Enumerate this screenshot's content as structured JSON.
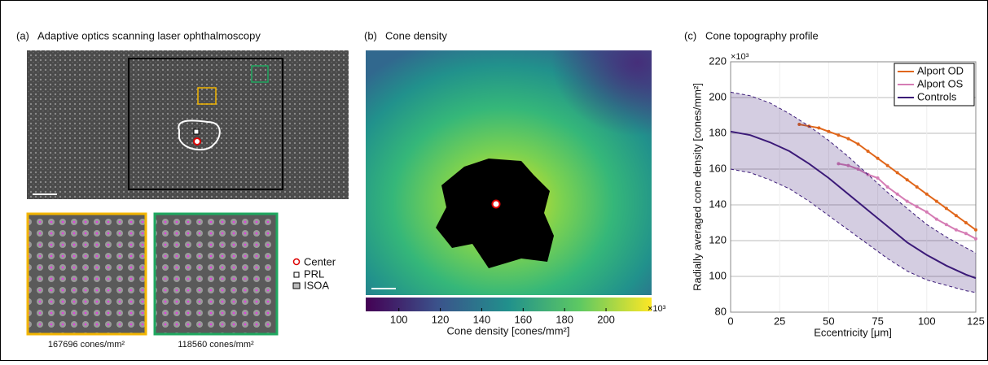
{
  "panel_a": {
    "label": "(a)",
    "title": "Adaptive optics scanning laser ophthalmoscopy",
    "legend": [
      "Center",
      "PRL",
      "ISOA"
    ],
    "insets": [
      "167696 cones/mm²",
      "118560 cones/mm²"
    ]
  },
  "panel_b": {
    "label": "(b)",
    "title": "Cone density",
    "colorbar_label": "Cone density [cones/mm²]",
    "colorbar_exponent": "×10³",
    "colorbar_lim": [
      84,
      222
    ],
    "colorbar_ticks": [
      100,
      120,
      140,
      160,
      180,
      200
    ]
  },
  "chart_data": {
    "type": "line",
    "label": "(c)",
    "title": "Cone topography profile",
    "x_label": "Eccentricity [μm]",
    "y_label": "Radially averaged cone density [cones/mm²]",
    "y_exponent": "×10³",
    "xlim": [
      0,
      125
    ],
    "xticks": [
      0,
      25,
      50,
      75,
      100,
      125
    ],
    "ylim": [
      80,
      220
    ],
    "yticks": [
      80,
      100,
      120,
      140,
      160,
      180,
      200,
      220
    ],
    "grid": true,
    "legend": "upper right",
    "series": [
      {
        "name": "Alport OD",
        "color": "#e0661a",
        "x": [
          35,
          40,
          45,
          50,
          55,
          60,
          65,
          70,
          75,
          80,
          85,
          90,
          95,
          100,
          105,
          110,
          115,
          120,
          125
        ],
        "values": [
          185,
          184,
          183,
          181,
          179,
          177,
          174,
          170,
          166,
          162,
          158,
          154,
          150,
          146,
          142,
          138,
          134,
          130,
          126
        ]
      },
      {
        "name": "Alport OS",
        "color": "#d57cb4",
        "x": [
          55,
          60,
          65,
          70,
          75,
          80,
          85,
          90,
          95,
          100,
          105,
          110,
          115,
          120,
          125
        ],
        "values": [
          163,
          162,
          160,
          157,
          155,
          150,
          146,
          142,
          139,
          136,
          132,
          129,
          126,
          124,
          121
        ]
      },
      {
        "name": "Controls",
        "color": "#3b1a78",
        "x": [
          0,
          10,
          20,
          30,
          40,
          50,
          60,
          70,
          80,
          90,
          100,
          110,
          120,
          125
        ],
        "values": [
          181,
          179,
          175,
          170,
          163,
          155,
          146,
          137,
          128,
          119,
          112,
          106,
          101,
          99
        ],
        "upper": [
          203,
          201,
          197,
          191,
          184,
          176,
          167,
          157,
          147,
          138,
          129,
          122,
          116,
          113
        ],
        "lower": [
          160,
          158,
          154,
          149,
          142,
          134,
          126,
          118,
          110,
          103,
          98,
          95,
          92,
          91
        ]
      }
    ]
  }
}
